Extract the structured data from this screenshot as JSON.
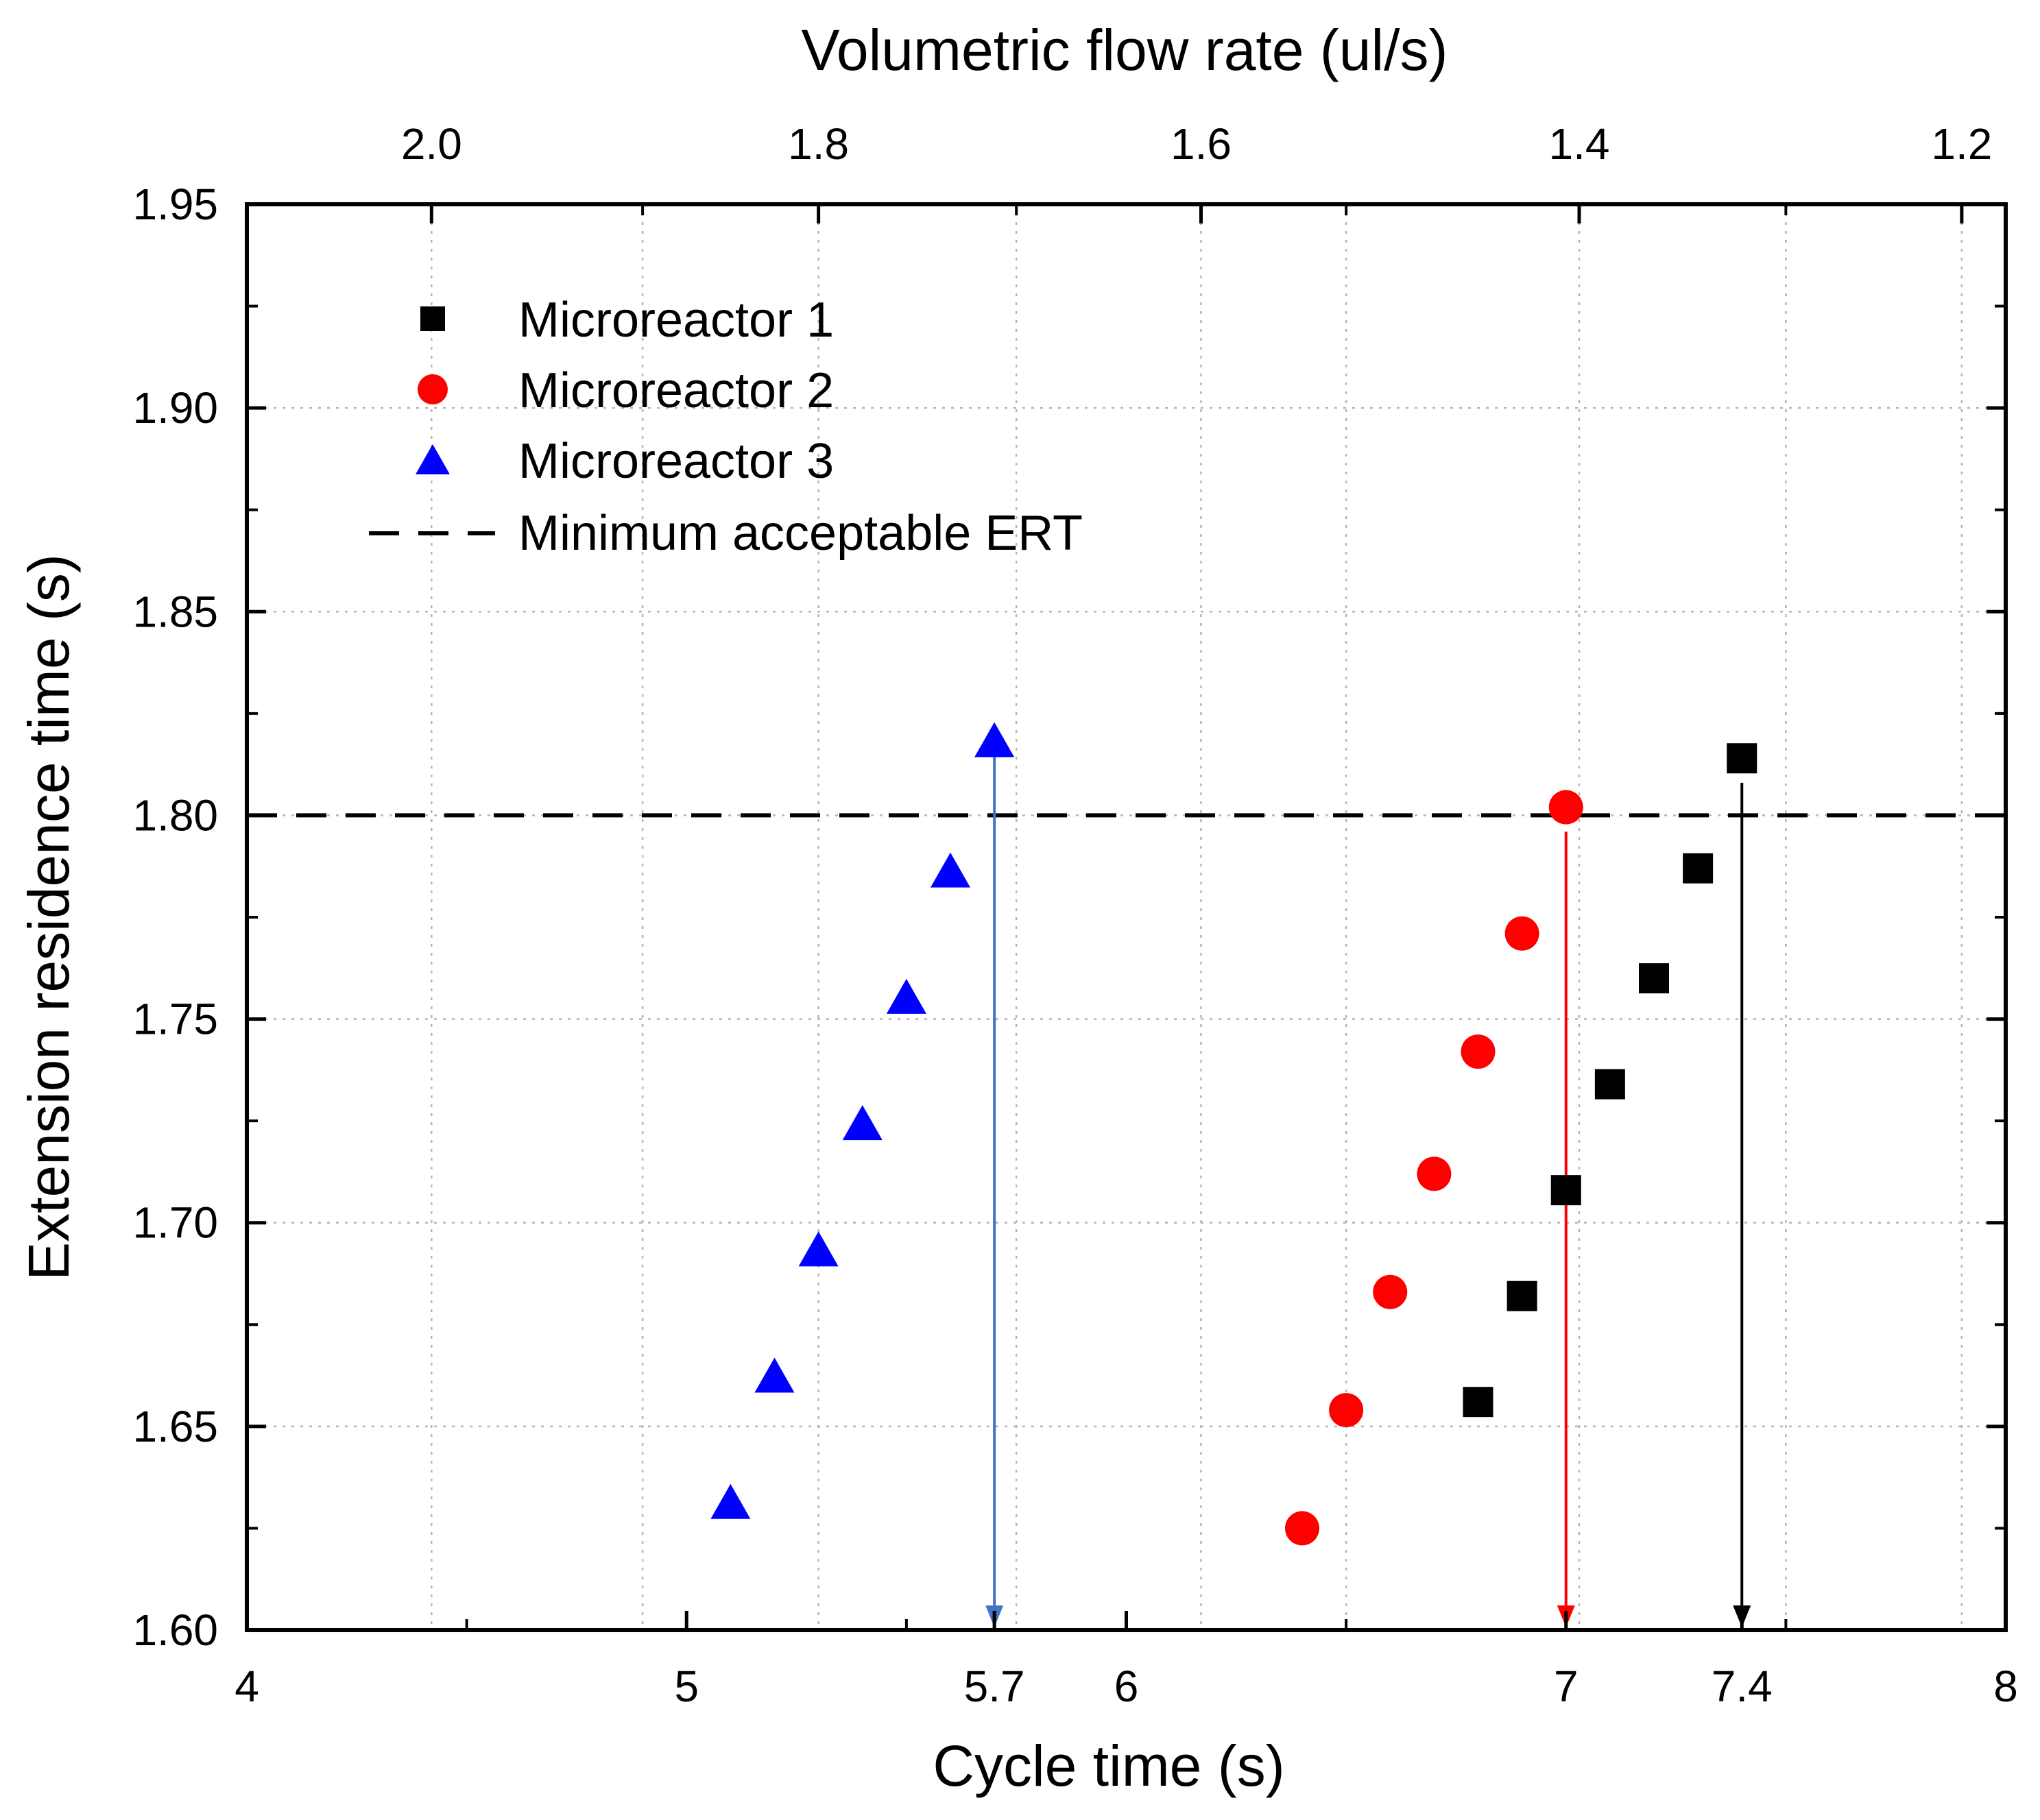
{
  "chart_data": {
    "type": "scatter",
    "xlabel": "Cycle time (s)",
    "ylabel": "Extension residence time (s)",
    "x2label": "Volumetric flow rate (ul/s)",
    "xlim": [
      4,
      8
    ],
    "ylim": [
      1.6,
      1.95
    ],
    "x_ticks": [
      4,
      5,
      5.7,
      6,
      7,
      7.4,
      8
    ],
    "x_tick_labels": [
      "4",
      "5",
      "5.7",
      "6",
      "7",
      "7.4",
      "8"
    ],
    "x_minor_ticks": [
      4.5,
      5.5,
      6.5,
      7.5
    ],
    "y_ticks": [
      1.6,
      1.65,
      1.7,
      1.75,
      1.8,
      1.85,
      1.9,
      1.95
    ],
    "y_tick_labels": [
      "1.60",
      "1.65",
      "1.70",
      "1.75",
      "1.80",
      "1.85",
      "1.90",
      "1.95"
    ],
    "x2_ticks": [
      2.0,
      1.8,
      1.6,
      1.4,
      1.2
    ],
    "x2_tick_labels": [
      "2.0",
      "1.8",
      "1.6",
      "1.4",
      "1.2"
    ],
    "x2_tick_positions_in_x": [
      4.42,
      5.3,
      6.17,
      7.03,
      7.9
    ],
    "x2_minor_positions_in_x": [
      4.9,
      5.75,
      6.5,
      7.5
    ],
    "grid": true,
    "legend_position": "top-left",
    "series": [
      {
        "name": "Microreactor 1",
        "marker": "square",
        "color": "#000000",
        "x": [
          6.8,
          6.9,
          7.0,
          7.1,
          7.2,
          7.3,
          7.4
        ],
        "y": [
          1.656,
          1.682,
          1.708,
          1.734,
          1.76,
          1.787,
          1.814
        ]
      },
      {
        "name": "Microreactor 2",
        "marker": "circle",
        "color": "#ff0000",
        "x": [
          6.4,
          6.5,
          6.6,
          6.7,
          6.8,
          6.9,
          7.0
        ],
        "y": [
          1.625,
          1.654,
          1.683,
          1.712,
          1.742,
          1.771,
          1.802
        ]
      },
      {
        "name": "Microreactor 3",
        "marker": "triangle",
        "color": "#0000ff",
        "x": [
          5.1,
          5.2,
          5.3,
          5.4,
          5.5,
          5.6,
          5.7
        ],
        "y": [
          1.631,
          1.662,
          1.693,
          1.724,
          1.755,
          1.786,
          1.818
        ]
      }
    ],
    "threshold": {
      "name": "Minimum acceptable ERT",
      "y": 1.8,
      "style": "dashed",
      "color": "#000000"
    },
    "arrows": [
      {
        "x": 5.7,
        "y_from": 1.816,
        "y_to": 1.6,
        "color": "#4472c4"
      },
      {
        "x": 7.0,
        "y_from": 1.796,
        "y_to": 1.6,
        "color": "#ff0000"
      },
      {
        "x": 7.4,
        "y_from": 1.808,
        "y_to": 1.6,
        "color": "#000000"
      }
    ]
  }
}
